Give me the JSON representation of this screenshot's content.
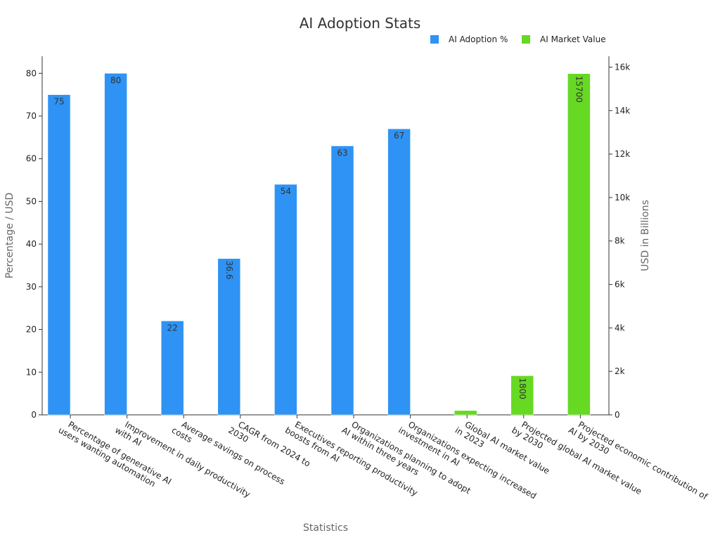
{
  "chart_data": {
    "type": "bar",
    "title": "AI Adoption Stats",
    "xlabel": "Statistics",
    "ylabel": "Percentage / USD",
    "y2label": "USD in Billions",
    "ylim": [
      0,
      84
    ],
    "y2lim": [
      0,
      16500
    ],
    "yticks": [
      0,
      10,
      20,
      30,
      40,
      50,
      60,
      70,
      80
    ],
    "y2ticks": [
      {
        "value": 0,
        "label": "0"
      },
      {
        "value": 2000,
        "label": "2k"
      },
      {
        "value": 4000,
        "label": "4k"
      },
      {
        "value": 6000,
        "label": "6k"
      },
      {
        "value": 8000,
        "label": "8k"
      },
      {
        "value": 10000,
        "label": "10k"
      },
      {
        "value": 12000,
        "label": "12k"
      },
      {
        "value": 14000,
        "label": "14k"
      },
      {
        "value": 16000,
        "label": "16k"
      }
    ],
    "legend_position": "top-right",
    "categories": [
      [
        "Percentage of generative AI",
        "users wanting automation"
      ],
      [
        "Improvement in daily productivity",
        "with AI"
      ],
      [
        "Average savings on process",
        "costs"
      ],
      [
        "CAGR from 2024 to",
        "2030"
      ],
      [
        "Executives reporting productivity",
        "boosts from AI"
      ],
      [
        "Organizations planning to adopt",
        "AI within three years"
      ],
      [
        "Organizations expecting increased",
        "investment in AI"
      ],
      [
        "Global AI market value",
        "in 2023"
      ],
      [
        "Projected global AI market value",
        "by 2030"
      ],
      [
        "Projected economic contribution of",
        "AI by 2030"
      ]
    ],
    "series": [
      {
        "name": "AI Adoption %",
        "axis": "left",
        "color": "#2e93f4",
        "values": [
          75,
          80,
          22,
          36.6,
          54,
          63,
          67,
          null,
          null,
          null
        ],
        "labels": [
          "75",
          "80",
          "22",
          "36.6",
          "54",
          "63",
          "67",
          null,
          null,
          null
        ]
      },
      {
        "name": "AI Market Value",
        "axis": "right",
        "color": "#66d923",
        "values": [
          null,
          null,
          null,
          null,
          null,
          null,
          null,
          196.63,
          1800,
          15700
        ],
        "labels": [
          null,
          null,
          null,
          null,
          null,
          null,
          null,
          null,
          "1800",
          "15700"
        ]
      }
    ]
  }
}
